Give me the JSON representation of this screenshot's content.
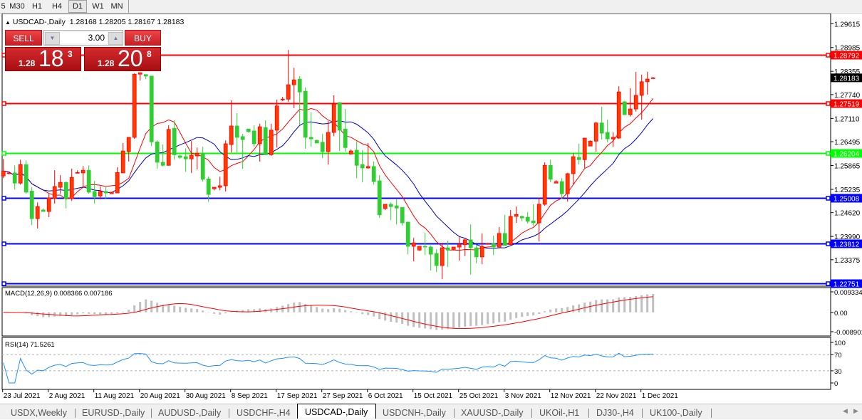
{
  "toolbar": {
    "timeframes": [
      {
        "label": "5",
        "active": false
      },
      {
        "label": "M30",
        "active": false
      },
      {
        "label": "H1",
        "active": false
      },
      {
        "label": "H4",
        "active": false
      },
      {
        "label": "D1",
        "active": true
      },
      {
        "label": "W1",
        "active": false
      },
      {
        "label": "MN",
        "active": false
      }
    ]
  },
  "chart": {
    "header": {
      "arrow_icon": "triangle-up-icon",
      "symbol": "USDCAD-,Daily",
      "ohlc": "1.28168 1.28205 1.28167 1.28183"
    },
    "one_click": {
      "sell_label": "SELL",
      "buy_label": "BUY",
      "lot": "3.00",
      "sell_price": {
        "prefix": "1.28",
        "big": "18",
        "pip": "3"
      },
      "buy_price": {
        "prefix": "1.28",
        "big": "20",
        "pip": "8"
      }
    },
    "colors": {
      "bull_body": "#ff3c00",
      "bull_outline": "#ff0000",
      "bear_body": "#32cd32",
      "fast_ma": "#ff0000",
      "slow_ma": "#0000c8",
      "macd_hist": "#c0c0c0",
      "macd_signal": "#ff0000",
      "rsi": "#1e90ff"
    },
    "price_axis": [
      "1.29615",
      "1.28985",
      "1.28355",
      "1.27740",
      "1.27110",
      "1.26495",
      "1.25865",
      "1.25235",
      "1.24620",
      "1.23990",
      "1.23375"
    ],
    "last_price": "1.28183",
    "horizontal_lines": [
      {
        "price": "1.28792",
        "color": "#ff0000"
      },
      {
        "price": "1.27519",
        "color": "#ff0000"
      },
      {
        "price": "1.26204",
        "color": "#00ff00"
      },
      {
        "price": "1.25008",
        "color": "#0000ff"
      },
      {
        "price": "1.23812",
        "color": "#0000ff"
      },
      {
        "price": "1.22751",
        "color": "#0000ff"
      }
    ],
    "date_axis": [
      "23 Jul 2021",
      "2 Aug 2021",
      "11 Aug 2021",
      "20 Aug 2021",
      "30 Aug 2021",
      "8 Sep 2021",
      "17 Sep 2021",
      "27 Sep 2021",
      "6 Oct 2021",
      "15 Oct 2021",
      "25 Oct 2021",
      "3 Nov 2021",
      "12 Nov 2021",
      "22 Nov 2021",
      "1 Dec 2021"
    ],
    "macd": {
      "label": "MACD(12,26,9) 0.008366 0.007186",
      "axis": [
        "0.009334",
        "0.00",
        "-0.008901"
      ],
      "range": [
        -0.008901,
        0.009334
      ]
    },
    "rsi": {
      "label": "RSI(14) 71.5261",
      "axis": [
        "100",
        "70",
        "30",
        "0"
      ],
      "levels": [
        70,
        30
      ]
    }
  },
  "chart_data": {
    "type": "candlestick",
    "title": "USDCAD-,Daily",
    "ohlc_columns": [
      "open",
      "high",
      "low",
      "close"
    ],
    "candles": [
      [
        1.2559,
        1.2604,
        1.2553,
        1.2572
      ],
      [
        1.2567,
        1.257,
        1.2563,
        1.2567
      ],
      [
        1.2567,
        1.2587,
        1.2523,
        1.254
      ],
      [
        1.254,
        1.2602,
        1.2536,
        1.2589
      ],
      [
        1.2589,
        1.26,
        1.2512,
        1.2516
      ],
      [
        1.2519,
        1.2529,
        1.2429,
        1.2446
      ],
      [
        1.2446,
        1.2489,
        1.242,
        1.2478
      ],
      [
        1.2469,
        1.2473,
        1.2465,
        1.2465
      ],
      [
        1.2465,
        1.2512,
        1.245,
        1.2501
      ],
      [
        1.2499,
        1.2574,
        1.2486,
        1.2531
      ],
      [
        1.2529,
        1.2561,
        1.2512,
        1.2542
      ],
      [
        1.2542,
        1.2544,
        1.2473,
        1.2499
      ],
      [
        1.2499,
        1.2578,
        1.2493,
        1.2555
      ],
      [
        1.2568,
        1.2574,
        1.2567,
        1.2568
      ],
      [
        1.2567,
        1.2585,
        1.2527,
        1.2574
      ],
      [
        1.2574,
        1.2587,
        1.2512,
        1.2516
      ],
      [
        1.2518,
        1.2546,
        1.2486,
        1.2504
      ],
      [
        1.2506,
        1.2531,
        1.2497,
        1.2518
      ],
      [
        1.2518,
        1.2529,
        1.2497,
        1.2514
      ],
      [
        1.2512,
        1.2516,
        1.2512,
        1.2516
      ],
      [
        1.2514,
        1.2582,
        1.2514,
        1.2568
      ],
      [
        1.2567,
        1.2646,
        1.2567,
        1.2625
      ],
      [
        1.2623,
        1.2661,
        1.2597,
        1.2661
      ],
      [
        1.2661,
        1.283,
        1.2657,
        1.2828
      ],
      [
        1.2828,
        1.2832,
        1.2811,
        1.2832
      ],
      [
        1.2827,
        1.2827,
        1.2815,
        1.2823
      ],
      [
        1.2823,
        1.2823,
        1.2638,
        1.2649
      ],
      [
        1.2649,
        1.2653,
        1.2578,
        1.2595
      ],
      [
        1.2595,
        1.2642,
        1.2584,
        1.2587
      ],
      [
        1.2587,
        1.2693,
        1.2587,
        1.2682
      ],
      [
        1.2685,
        1.2706,
        1.2602,
        1.2615
      ],
      [
        1.2612,
        1.2615,
        1.2604,
        1.2608
      ],
      [
        1.261,
        1.2632,
        1.257,
        1.2604
      ],
      [
        1.2604,
        1.2651,
        1.2567,
        1.2614
      ],
      [
        1.2612,
        1.2634,
        1.2576,
        1.2619
      ],
      [
        1.2619,
        1.2636,
        1.2544,
        1.255
      ],
      [
        1.2551,
        1.2557,
        1.2491,
        1.251
      ],
      [
        1.2525,
        1.2529,
        1.2521,
        1.2529
      ],
      [
        1.2529,
        1.2557,
        1.2521,
        1.2533
      ],
      [
        1.2533,
        1.2653,
        1.2518,
        1.2644
      ],
      [
        1.2642,
        1.2759,
        1.2621,
        1.2691
      ],
      [
        1.2691,
        1.2725,
        1.2621,
        1.2661
      ],
      [
        1.2663,
        1.267,
        1.2578,
        1.2655
      ],
      [
        1.2683,
        1.2683,
        1.2674,
        1.2676
      ],
      [
        1.2678,
        1.2693,
        1.2636,
        1.2644
      ],
      [
        1.2644,
        1.2697,
        1.2597,
        1.2689
      ],
      [
        1.2687,
        1.2706,
        1.2615,
        1.2615
      ],
      [
        1.2615,
        1.2697,
        1.2612,
        1.268
      ],
      [
        1.268,
        1.2761,
        1.2634,
        1.2744
      ],
      [
        1.2762,
        1.2768,
        1.2757,
        1.2762
      ],
      [
        1.2762,
        1.2892,
        1.2755,
        1.28
      ],
      [
        1.28,
        1.2845,
        1.2738,
        1.2813
      ],
      [
        1.2815,
        1.2823,
        1.2693,
        1.2781
      ],
      [
        1.2783,
        1.2793,
        1.2631,
        1.2661
      ],
      [
        1.2661,
        1.2727,
        1.2636,
        1.2657
      ],
      [
        1.2653,
        1.2655,
        1.2646,
        1.2646
      ],
      [
        1.2648,
        1.267,
        1.2606,
        1.2623
      ],
      [
        1.2623,
        1.2704,
        1.2589,
        1.2674
      ],
      [
        1.2674,
        1.2772,
        1.2664,
        1.2749
      ],
      [
        1.2753,
        1.2753,
        1.2625,
        1.268
      ],
      [
        1.2683,
        1.2736,
        1.2623,
        1.2634
      ],
      [
        1.2617,
        1.2629,
        1.2615,
        1.2625
      ],
      [
        1.2627,
        1.2651,
        1.2553,
        1.2587
      ],
      [
        1.2589,
        1.2627,
        1.2542,
        1.258
      ],
      [
        1.258,
        1.2646,
        1.2578,
        1.2584
      ],
      [
        1.2584,
        1.2597,
        1.2536,
        1.2544
      ],
      [
        1.2546,
        1.2561,
        1.2448,
        1.2456
      ],
      [
        1.2473,
        1.2484,
        1.2469,
        1.2484
      ],
      [
        1.2484,
        1.2489,
        1.2442,
        1.2478
      ],
      [
        1.248,
        1.2497,
        1.2431,
        1.2474
      ],
      [
        1.2476,
        1.2476,
        1.2427,
        1.2435
      ],
      [
        1.2437,
        1.2437,
        1.2352,
        1.2373
      ],
      [
        1.2373,
        1.2395,
        1.2333,
        1.2382
      ],
      [
        1.2363,
        1.2373,
        1.2361,
        1.2373
      ],
      [
        1.2373,
        1.2409,
        1.235,
        1.2371
      ],
      [
        1.2371,
        1.2375,
        1.2309,
        1.2352
      ],
      [
        1.2354,
        1.2365,
        1.2305,
        1.2322
      ],
      [
        1.2322,
        1.2382,
        1.2286,
        1.2369
      ],
      [
        1.2369,
        1.2388,
        1.2318,
        1.2363
      ],
      [
        1.2365,
        1.2371,
        1.2363,
        1.2371
      ],
      [
        1.2371,
        1.2399,
        1.2335,
        1.2378
      ],
      [
        1.2377,
        1.2395,
        1.2347,
        1.239
      ],
      [
        1.239,
        1.2431,
        1.2298,
        1.2369
      ],
      [
        1.2369,
        1.2378,
        1.2328,
        1.2345
      ],
      [
        1.2345,
        1.2407,
        1.2326,
        1.2373
      ],
      [
        1.238,
        1.2382,
        1.2378,
        1.238
      ],
      [
        1.238,
        1.2401,
        1.235,
        1.2371
      ],
      [
        1.2371,
        1.2424,
        1.2371,
        1.2407
      ],
      [
        1.2407,
        1.2456,
        1.2375,
        1.2375
      ],
      [
        1.2377,
        1.2469,
        1.2377,
        1.2452
      ],
      [
        1.2452,
        1.2478,
        1.2435,
        1.2457
      ],
      [
        1.2452,
        1.2454,
        1.244,
        1.2448
      ],
      [
        1.245,
        1.2463,
        1.2433,
        1.2439
      ],
      [
        1.244,
        1.2484,
        1.2427,
        1.2435
      ],
      [
        1.2435,
        1.2501,
        1.2386,
        1.2484
      ],
      [
        1.2484,
        1.2595,
        1.248,
        1.2587
      ],
      [
        1.2587,
        1.2602,
        1.2542,
        1.255
      ],
      [
        1.254,
        1.2548,
        1.254,
        1.2544
      ],
      [
        1.2544,
        1.2553,
        1.2499,
        1.2512
      ],
      [
        1.2512,
        1.2567,
        1.2491,
        1.2565
      ],
      [
        1.2565,
        1.2619,
        1.2536,
        1.261
      ],
      [
        1.2608,
        1.2644,
        1.2589,
        1.2602
      ],
      [
        1.2602,
        1.2659,
        1.258,
        1.2659
      ],
      [
        1.2638,
        1.2653,
        1.2638,
        1.2651
      ],
      [
        1.2651,
        1.2702,
        1.2623,
        1.2699
      ],
      [
        1.2699,
        1.2742,
        1.2655,
        1.2672
      ],
      [
        1.2674,
        1.2708,
        1.2648,
        1.2657
      ],
      [
        1.2657,
        1.2674,
        1.2636,
        1.2661
      ],
      [
        1.2659,
        1.2796,
        1.2657,
        1.2781
      ],
      [
        1.2755,
        1.2757,
        1.2721,
        1.2721
      ],
      [
        1.2721,
        1.2791,
        1.2716,
        1.2736
      ],
      [
        1.2736,
        1.2834,
        1.2729,
        1.2772
      ],
      [
        1.2772,
        1.2827,
        1.2708,
        1.2808
      ],
      [
        1.2808,
        1.2834,
        1.2774,
        1.2815
      ],
      [
        1.28168,
        1.28205,
        1.28167,
        1.28183
      ]
    ],
    "ylim": [
      1.2265,
      1.2975
    ],
    "grid": false
  },
  "tabs": [
    {
      "label": "USDX,Weekly",
      "active": false
    },
    {
      "label": "EURUSD-,Daily",
      "active": false
    },
    {
      "label": "AUDUSD-,Daily",
      "active": false
    },
    {
      "label": "USDCHF-,H4",
      "active": false
    },
    {
      "label": "USDCAD-,Daily",
      "active": true
    },
    {
      "label": "USDCNH-,Daily",
      "active": false
    },
    {
      "label": "XAUUSD-,Daily",
      "active": false
    },
    {
      "label": "UKOil-,H1",
      "active": false
    },
    {
      "label": "DJ30-,H4",
      "active": false
    },
    {
      "label": "UK100-,Daily",
      "active": false
    }
  ]
}
